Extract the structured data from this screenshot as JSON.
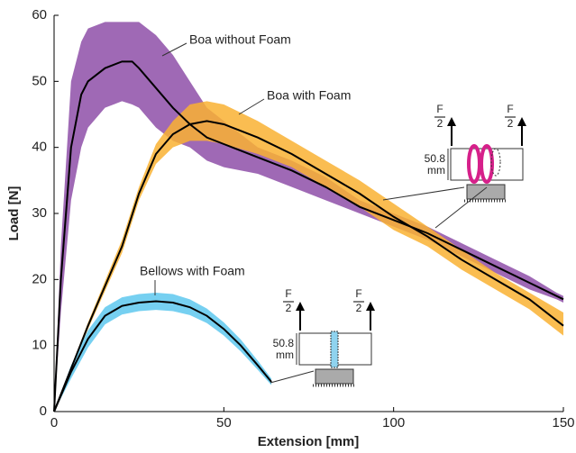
{
  "chart_data": {
    "type": "line_band",
    "x_label": "Extension [mm]",
    "y_label": "Load [N]",
    "xlim": [
      0,
      150
    ],
    "xticks": [
      0,
      50,
      100,
      150
    ],
    "ylim": [
      0,
      60
    ],
    "yticks": [
      0,
      10,
      20,
      30,
      40,
      50,
      60
    ],
    "grid": false,
    "series": [
      {
        "name": "Boa without Foam",
        "color": "#8e4fa8",
        "x": [
          0,
          2,
          5,
          8,
          10,
          15,
          20,
          23,
          25,
          30,
          35,
          40,
          45,
          50,
          60,
          70,
          80,
          90,
          100,
          110,
          120,
          130,
          140,
          148,
          150
        ],
        "values": [
          0,
          20,
          40,
          48,
          50,
          52,
          53,
          53,
          52,
          49,
          46,
          43.5,
          41.5,
          40.5,
          38.5,
          36.5,
          34,
          31,
          29,
          27,
          24.5,
          22,
          19.5,
          17.5,
          17
        ],
        "upper": [
          0,
          25,
          50,
          56,
          58,
          59,
          59,
          59,
          59,
          57,
          54,
          50,
          46,
          44,
          40,
          38,
          35.5,
          32,
          30,
          28,
          25.5,
          23,
          20.5,
          18,
          17.5
        ],
        "lower": [
          0,
          15,
          32,
          40,
          43,
          46,
          47,
          46.5,
          46,
          43,
          41,
          40,
          38,
          37,
          36,
          34,
          32,
          30,
          28,
          26,
          23.5,
          21,
          18.5,
          17,
          16.5
        ]
      },
      {
        "name": "Boa with Foam",
        "color": "#f9b233",
        "x": [
          0,
          10,
          20,
          25,
          30,
          35,
          40,
          45,
          50,
          60,
          70,
          80,
          90,
          100,
          110,
          120,
          130,
          140,
          150
        ],
        "values": [
          0,
          13,
          25,
          33,
          39,
          42,
          43.5,
          44,
          43.5,
          41.5,
          39,
          36,
          33,
          29.5,
          26.5,
          23,
          20,
          17,
          13
        ],
        "upper": [
          0,
          13.5,
          26,
          34,
          40.5,
          44,
          46.5,
          47,
          46.5,
          44,
          41,
          38,
          35,
          31.5,
          28,
          24.5,
          21,
          18,
          15
        ],
        "lower": [
          0,
          12.5,
          24,
          32,
          37.5,
          40,
          41,
          41,
          40.5,
          39,
          37,
          34,
          31,
          27.5,
          25,
          21.5,
          18.5,
          15.5,
          11.5
        ]
      },
      {
        "name": "Bellows with Foam",
        "color": "#5ec8ee",
        "x": [
          0,
          5,
          10,
          15,
          20,
          25,
          30,
          35,
          40,
          45,
          50,
          55,
          60,
          64
        ],
        "values": [
          0,
          6,
          11,
          14.5,
          16,
          16.5,
          16.7,
          16.5,
          15.8,
          14.5,
          12.5,
          10,
          7,
          4.5
        ],
        "upper": [
          0,
          7,
          12.3,
          15.8,
          17.3,
          17.8,
          18,
          17.8,
          17,
          15.6,
          13.5,
          10.9,
          7.7,
          5
        ],
        "lower": [
          0,
          5,
          9.7,
          13.2,
          14.7,
          15.2,
          15.4,
          15.2,
          14.6,
          13.4,
          11.5,
          9.1,
          6.3,
          4
        ]
      }
    ],
    "insets": [
      {
        "force_label": "F",
        "force_divisor": "2",
        "height": "50.8",
        "unit": "mm"
      },
      {
        "force_label": "F",
        "force_divisor": "2",
        "height": "50.8",
        "unit": "mm"
      }
    ]
  }
}
